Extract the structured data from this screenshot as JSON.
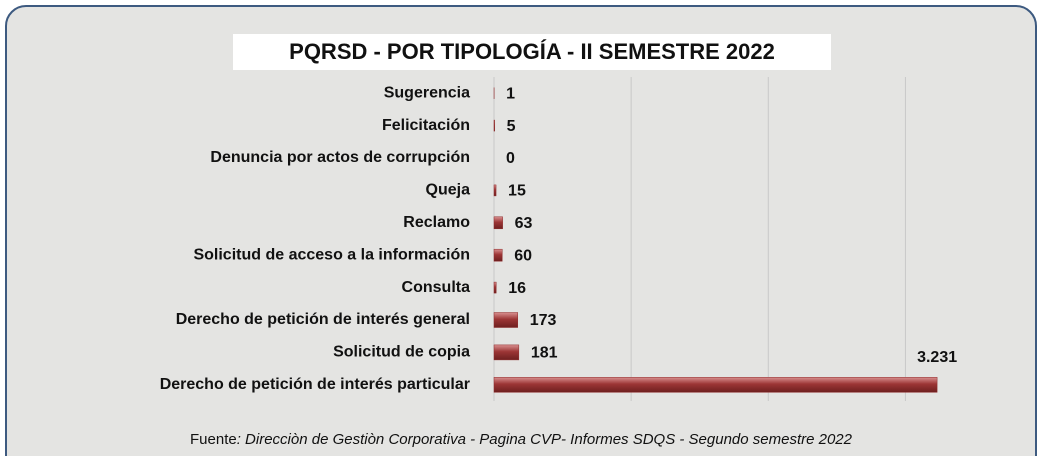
{
  "chart_data": {
    "type": "barh",
    "title": "PQRSD - POR TIPOLOGÍA - II SEMESTRE 2022",
    "categories": [
      "Sugerencia",
      "Felicitación",
      "Denuncia por actos de corrupción",
      "Queja",
      "Reclamo",
      "Solicitud de acceso a la información",
      "Consulta",
      "Derecho de petición de interés general",
      "Solicitud de copia",
      "Derecho de petición de interés particular"
    ],
    "values": [
      1,
      5,
      0,
      15,
      63,
      60,
      16,
      173,
      181,
      3231
    ],
    "value_labels": [
      "1",
      "5",
      "0",
      "15",
      "63",
      "60",
      "16",
      "173",
      "181",
      "3.231"
    ],
    "color": "#8e2b2b",
    "xlim": [
      0,
      3500
    ],
    "xticks": [
      0,
      1000,
      2000,
      3000
    ],
    "grid": true,
    "source_prefix": "Fuente",
    "source": ": Direcciòn de Gestiòn Corporativa - Pagina CVP- Informes SDQS - Segundo semestre 2022"
  }
}
